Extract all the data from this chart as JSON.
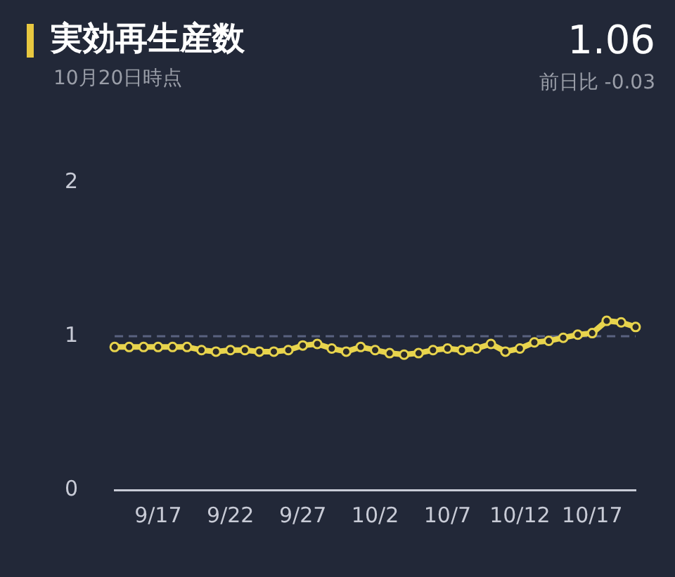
{
  "chart_data": {
    "type": "line",
    "title": "実効再生産数",
    "subtitle": "10月20日時点",
    "annotations": [
      "1.06",
      "前日比 -0.03"
    ],
    "categories": [
      null,
      null,
      null,
      "9/17",
      null,
      null,
      null,
      null,
      "9/22",
      null,
      null,
      null,
      null,
      "9/27",
      null,
      null,
      null,
      null,
      "10/2",
      null,
      null,
      null,
      null,
      "10/7",
      null,
      null,
      null,
      null,
      "10/12",
      null,
      null,
      null,
      null,
      "10/17",
      null,
      null,
      null
    ],
    "series": [
      {
        "color": "#e8d44d",
        "values": [
          0.93,
          0.93,
          0.93,
          0.93,
          0.93,
          0.93,
          0.91,
          0.9,
          0.91,
          0.91,
          0.9,
          0.9,
          0.91,
          0.94,
          0.95,
          0.92,
          0.9,
          0.93,
          0.91,
          0.89,
          0.88,
          0.89,
          0.91,
          0.92,
          0.91,
          0.92,
          0.95,
          0.9,
          0.92,
          0.96,
          0.97,
          0.99,
          1.01,
          1.02,
          1.1,
          1.09,
          1.06
        ]
      }
    ],
    "ylim": [
      0,
      2
    ],
    "yticks": [
      0,
      1,
      2
    ],
    "grid": false,
    "legend": false,
    "marker": "circle",
    "line_style": "solid",
    "ref_lines": [
      {
        "axis": "y",
        "value": 1,
        "color": "#5a6280",
        "line_style": "dashed"
      }
    ]
  }
}
